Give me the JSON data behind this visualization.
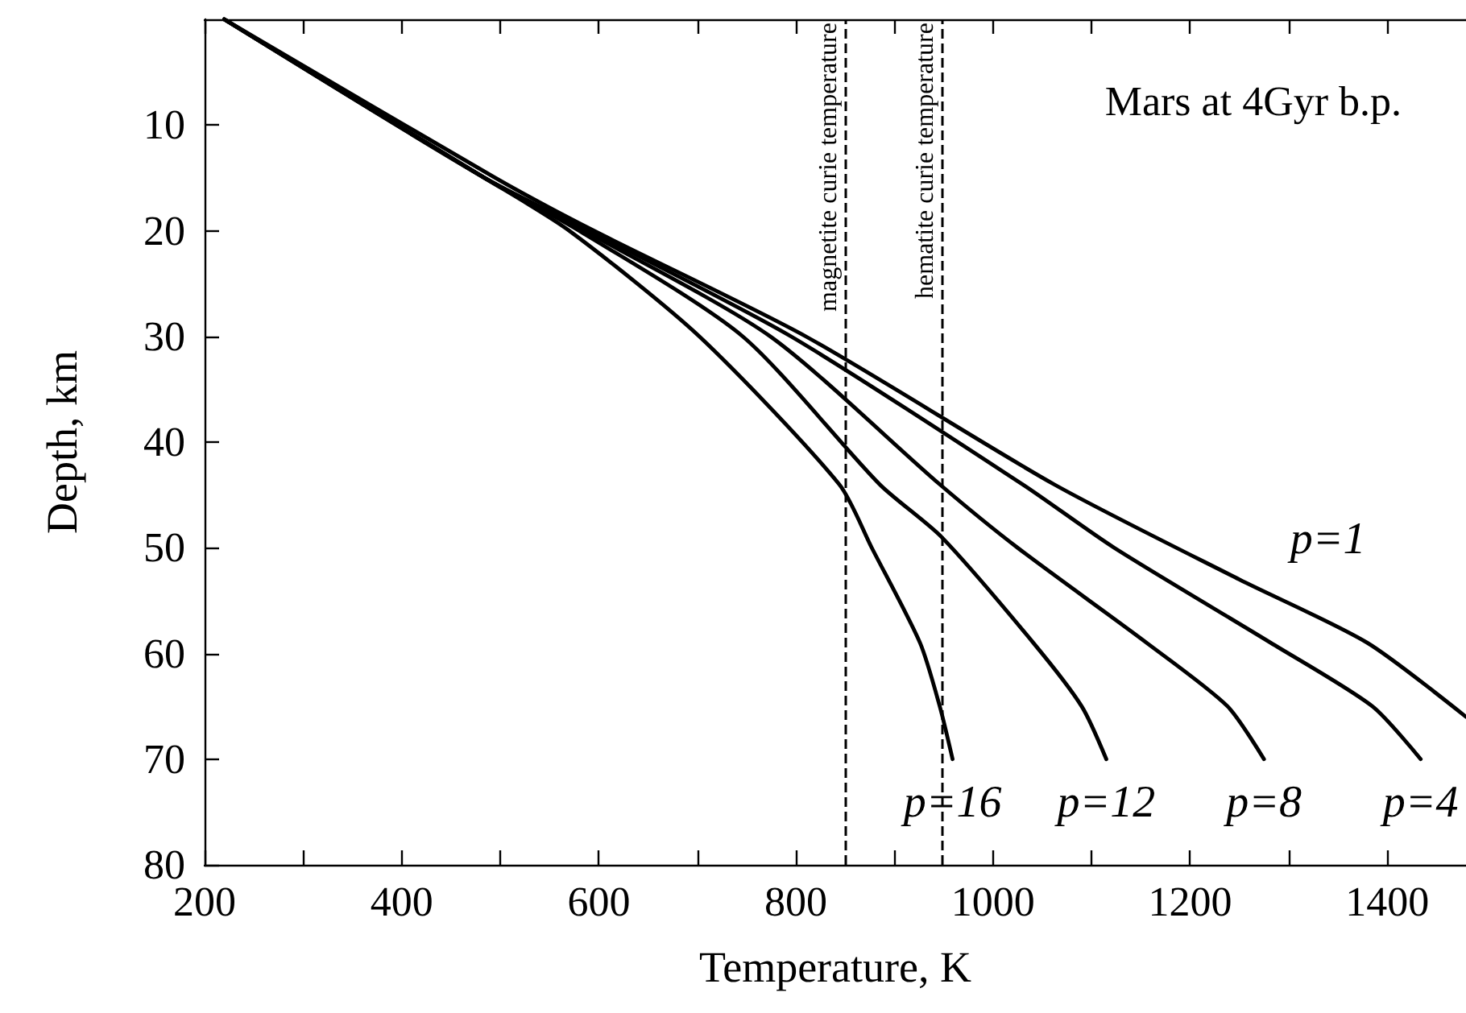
{
  "chart_data": {
    "type": "line",
    "xlabel": "Temperature, K",
    "ylabel": "Depth, km",
    "annotations": [
      "Mars at 4Gyr b.p."
    ],
    "xlim": [
      200,
      1480
    ],
    "ylim": [
      80,
      0
    ],
    "xticks": [
      200,
      {
        "value": 300,
        "label": null
      },
      400,
      {
        "value": 500,
        "label": null
      },
      600,
      {
        "value": 700,
        "label": null
      },
      800,
      {
        "value": 900,
        "label": null
      },
      1000,
      {
        "value": 1100,
        "label": null
      },
      1200,
      {
        "value": 1300,
        "label": null
      },
      1400
    ],
    "yticks": [
      10,
      20,
      30,
      40,
      50,
      60,
      70,
      80
    ],
    "grid": false,
    "legend": false,
    "marker": "none",
    "line_style": "solid",
    "ref_lines": [
      {
        "axis": "x",
        "value": 850,
        "label": "magnetite curie temperature",
        "color": "#000000",
        "line_style": "dashed"
      },
      {
        "axis": "x",
        "value": 948,
        "label": "hematite curie temperature",
        "color": "#000000",
        "line_style": "dashed"
      }
    ],
    "series": [
      {
        "name": "p=1",
        "color": "#000000",
        "x": [
          220,
          495,
          595,
          810,
          1062,
          1250,
          1380,
          1480
        ],
        "values": [
          0,
          15,
          20,
          30,
          44,
          53,
          59,
          66
        ]
      },
      {
        "name": "p=4",
        "color": "#000000",
        "x": [
          220,
          484,
          590,
          795,
          1030,
          1123,
          1282,
          1385,
          1434
        ],
        "values": [
          0,
          15,
          20,
          30,
          44,
          50,
          59,
          65,
          70
        ]
      },
      {
        "name": "p=8",
        "color": "#000000",
        "x": [
          220,
          484,
          585,
          774,
          946,
          1025,
          1156,
          1238,
          1275
        ],
        "values": [
          0,
          15,
          20,
          30,
          44,
          50,
          59,
          65,
          70
        ]
      },
      {
        "name": "p=12",
        "color": "#000000",
        "x": [
          220,
          484,
          580,
          746,
          885,
          948,
          1041,
          1090,
          1115
        ],
        "values": [
          0,
          15,
          20,
          30,
          44,
          49,
          59,
          65,
          70
        ]
      },
      {
        "name": "p=16",
        "color": "#000000",
        "x": [
          220,
          484,
          570,
          702,
          844,
          877,
          926,
          946,
          959
        ],
        "values": [
          0,
          15,
          20,
          30,
          44,
          50,
          59,
          65,
          70
        ]
      }
    ]
  }
}
